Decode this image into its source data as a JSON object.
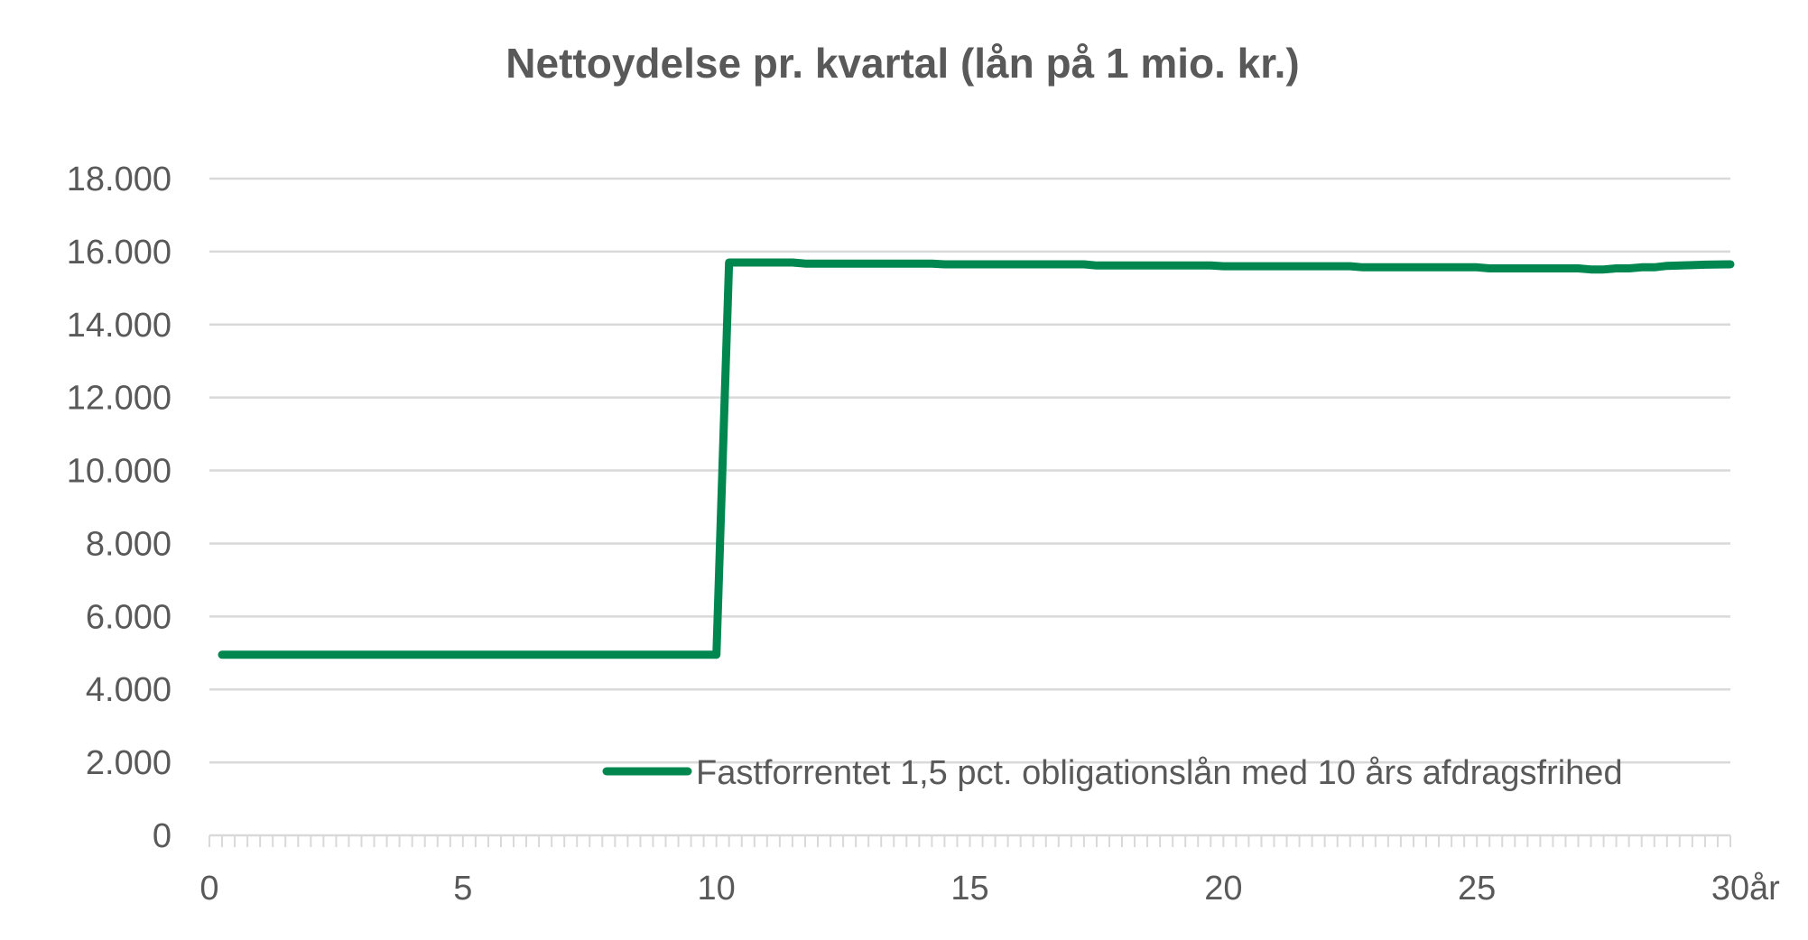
{
  "chart_data": {
    "type": "line",
    "title": "Nettoydelse pr. kvartal (lån på 1 mio. kr.)",
    "xlabel": "år",
    "ylabel": "",
    "xlim": [
      0,
      30
    ],
    "ylim": [
      0,
      18000
    ],
    "x_ticks": [
      {
        "value": 0,
        "label": "0"
      },
      {
        "value": 5,
        "label": "5"
      },
      {
        "value": 10,
        "label": "10"
      },
      {
        "value": 15,
        "label": "15"
      },
      {
        "value": 20,
        "label": "20"
      },
      {
        "value": 25,
        "label": "25"
      },
      {
        "value": 30,
        "label": "30"
      }
    ],
    "y_ticks": [
      {
        "value": 0,
        "label": "0"
      },
      {
        "value": 2000,
        "label": "2.000"
      },
      {
        "value": 4000,
        "label": "4.000"
      },
      {
        "value": 6000,
        "label": "6.000"
      },
      {
        "value": 8000,
        "label": "8.000"
      },
      {
        "value": 10000,
        "label": "10.000"
      },
      {
        "value": 12000,
        "label": "12.000"
      },
      {
        "value": 14000,
        "label": "14.000"
      },
      {
        "value": 16000,
        "label": "16.000"
      },
      {
        "value": 18000,
        "label": "18.000"
      }
    ],
    "grid": true,
    "legend_position": "bottom-right",
    "series": [
      {
        "name": "Fastforrentet 1,5 pct. obligationslån med 10 års afdragsfrihed",
        "color": "#00874f",
        "points": [
          [
            0.25,
            4950
          ],
          [
            10.0,
            4950
          ],
          [
            10.25,
            15700
          ],
          [
            11.5,
            15700
          ],
          [
            11.75,
            15670
          ],
          [
            14.25,
            15670
          ],
          [
            14.5,
            15650
          ],
          [
            17.25,
            15650
          ],
          [
            17.5,
            15620
          ],
          [
            19.75,
            15620
          ],
          [
            20.0,
            15600
          ],
          [
            22.5,
            15600
          ],
          [
            22.75,
            15570
          ],
          [
            25.0,
            15570
          ],
          [
            25.25,
            15540
          ],
          [
            27.0,
            15540
          ],
          [
            27.25,
            15510
          ],
          [
            27.5,
            15510
          ],
          [
            27.75,
            15540
          ],
          [
            28.0,
            15540
          ],
          [
            28.25,
            15570
          ],
          [
            28.5,
            15570
          ],
          [
            28.75,
            15610
          ],
          [
            29.25,
            15630
          ],
          [
            29.5,
            15640
          ],
          [
            30.0,
            15650
          ]
        ]
      }
    ]
  }
}
